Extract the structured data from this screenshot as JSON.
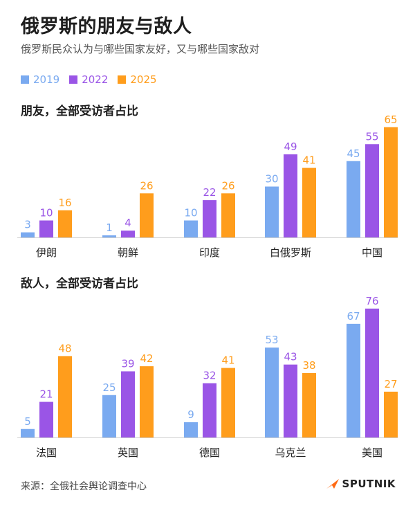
{
  "header": {
    "title": "俄罗斯的朋友与敌人",
    "subtitle": "俄罗斯民众认为与哪些国家友好，又与哪些国家敌对"
  },
  "colors": {
    "2019": "#7aaaf0",
    "2022": "#9a55e6",
    "2025": "#ff9d1c",
    "baseline": "#cfcfcf"
  },
  "legend": [
    {
      "label": "2019",
      "color": "#7aaaf0"
    },
    {
      "label": "2022",
      "color": "#9a55e6"
    },
    {
      "label": "2025",
      "color": "#ff9d1c"
    }
  ],
  "chart_data": [
    {
      "type": "bar",
      "title": "朋友，全部受访者占比",
      "categories": [
        "伊朗",
        "朝鲜",
        "印度",
        "白俄罗斯",
        "中国"
      ],
      "series": [
        {
          "name": "2019",
          "values": [
            3,
            1,
            10,
            30,
            45
          ]
        },
        {
          "name": "2022",
          "values": [
            10,
            4,
            22,
            49,
            55
          ]
        },
        {
          "name": "2025",
          "values": [
            16,
            26,
            26,
            41,
            65
          ]
        }
      ],
      "xlabel": "",
      "ylabel": "",
      "ylim": [
        0,
        65
      ]
    },
    {
      "type": "bar",
      "title": "敌人，全部受访者占比",
      "categories": [
        "法国",
        "英国",
        "德国",
        "乌克兰",
        "美国"
      ],
      "series": [
        {
          "name": "2019",
          "values": [
            5,
            25,
            9,
            53,
            67
          ]
        },
        {
          "name": "2022",
          "values": [
            21,
            39,
            32,
            43,
            76
          ]
        },
        {
          "name": "2025",
          "values": [
            48,
            42,
            41,
            38,
            27
          ]
        }
      ],
      "xlabel": "",
      "ylabel": "",
      "ylim": [
        0,
        76
      ]
    }
  ],
  "footer": {
    "source": "来源：全俄社会舆论调查中心",
    "brand": "SPUTNIK"
  }
}
